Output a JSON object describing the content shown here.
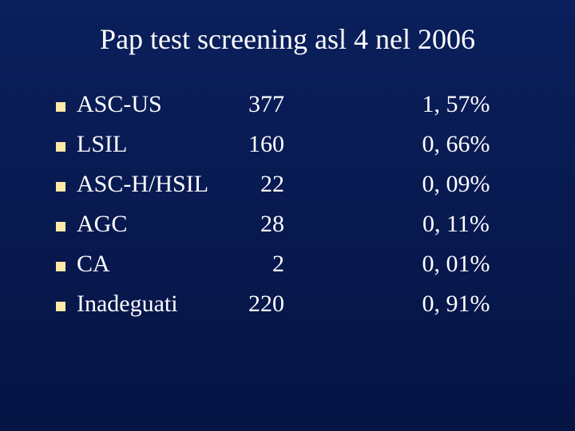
{
  "slide": {
    "type": "infographic",
    "background_gradient": [
      "#0a1f5c",
      "#061444"
    ],
    "title": "Pap test screening asl 4 nel 2006",
    "title_color": "#ffffff",
    "title_fontsize": 36,
    "bullet_color": "#ffe9a8",
    "text_color": "#ffffff",
    "body_fontsize": 30,
    "font_family": "Times New Roman",
    "rows": [
      {
        "label": "ASC-US",
        "count": "377",
        "pct": "1, 57%"
      },
      {
        "label": "LSIL",
        "count": "160",
        "pct": "0, 66%"
      },
      {
        "label": "ASC-H/HSIL",
        "count": "22",
        "pct": "0, 09%"
      },
      {
        "label": "AGC",
        "count": "28",
        "pct": "0, 11%"
      },
      {
        "label": "CA",
        "count": "2",
        "pct": "0, 01%"
      },
      {
        "label": "Inadeguati",
        "count": "220",
        "pct": "0, 91%"
      }
    ]
  }
}
